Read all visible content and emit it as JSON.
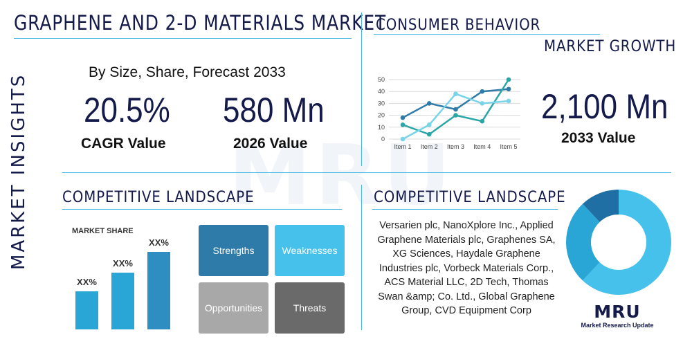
{
  "title": "GRAPHENE AND 2-D MATERIALS MARKET",
  "side_label": "MARKET INSIGHTS",
  "subtitle": "By Size, Share, Forecast 2033",
  "stats": {
    "cagr_value": "20.5%",
    "cagr_label": "CAGR Value",
    "value_2026": "580 Mn",
    "label_2026": "2026 Value",
    "value_2033": "2,100 Mn",
    "label_2033": "2033 Value"
  },
  "consumer_behavior": "CONSUMER BEHAVIOR",
  "market_growth": "MARKET GROWTH",
  "competitive_landscape_left": "COMPETITIVE LANDSCAPE",
  "competitive_landscape_right": "COMPETITIVE LANDSCAPE",
  "market_share_label": "MARKET SHARE",
  "swot": {
    "strengths": "Strengths",
    "weaknesses": "Weaknesses",
    "opportunities": "Opportunities",
    "threats": "Threats"
  },
  "companies": "Versarien plc, NanoXplore Inc., Applied Graphene Materials plc, Graphenes SA, XG Sciences, Haydale Graphene Industries plc, Vorbeck Materials Corp., ACS Material LLC, 2D Tech, Thomas Swan &amp; Co. Ltd., Global Graphene Group, CVD Equipment Corp",
  "logo": {
    "mark": "MRU",
    "name": "Market Research Update"
  },
  "colors": {
    "navy": "#141a4a",
    "accent": "#45b6e0",
    "series1": "#2e7aa8",
    "series2": "#2aa6a6",
    "series3": "#79d4ea",
    "swot_strengths": "#2e7aa8",
    "swot_weaknesses": "#45c1ec",
    "swot_opportunities": "#a8a8a8",
    "swot_threats": "#6a6a6a"
  },
  "chart_data": [
    {
      "type": "line",
      "categories": [
        "Item 1",
        "Item 2",
        "Item 3",
        "Item 4",
        "Item 5"
      ],
      "ylim": [
        0,
        50
      ],
      "yticks": [
        0,
        10,
        20,
        30,
        40,
        50
      ],
      "grid": true,
      "series": [
        {
          "values": [
            18,
            30,
            25,
            40,
            42
          ],
          "color": "#2e7aa8"
        },
        {
          "values": [
            12,
            4,
            20,
            15,
            50
          ],
          "color": "#2aa6a6"
        },
        {
          "values": [
            0,
            12,
            38,
            30,
            32
          ],
          "color": "#79d4ea"
        }
      ]
    },
    {
      "type": "bar",
      "title": "MARKET SHARE",
      "categories": [
        "",
        "",
        ""
      ],
      "values": [
        1,
        1.5,
        2.05
      ],
      "data_labels": [
        "XX%",
        "XX%",
        "XX%"
      ],
      "ylim": [
        0,
        2.2
      ]
    },
    {
      "type": "pie",
      "donut": true,
      "values": [
        62,
        26,
        12
      ],
      "colors": [
        "#45c1ec",
        "#2aa6d6",
        "#1f6fa5"
      ]
    }
  ]
}
